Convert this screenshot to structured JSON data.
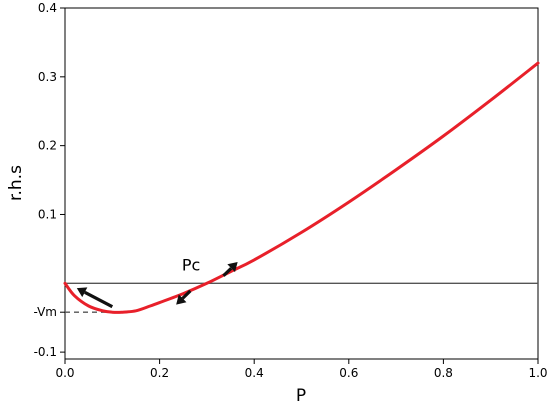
{
  "chart_data": {
    "type": "line",
    "xlabel": "P",
    "ylabel": "r.h.s",
    "xlim": [
      0.0,
      1.0
    ],
    "ylim": [
      -0.11,
      0.4
    ],
    "x_ticks": [
      {
        "value": 0.0,
        "label": "0.0"
      },
      {
        "value": 0.2,
        "label": "0.2"
      },
      {
        "value": 0.4,
        "label": "0.4"
      },
      {
        "value": 0.6,
        "label": "0.6"
      },
      {
        "value": 0.8,
        "label": "0.8"
      },
      {
        "value": 1.0,
        "label": "1.0"
      }
    ],
    "y_ticks": [
      {
        "value": 0.4,
        "label": "0.4"
      },
      {
        "value": 0.3,
        "label": "0.3"
      },
      {
        "value": 0.2,
        "label": "0.2"
      },
      {
        "value": 0.1,
        "label": "0.1"
      },
      {
        "value": -0.042,
        "label": "-Vm"
      },
      {
        "value": -0.1,
        "label": "-0.1"
      }
    ],
    "series": [
      {
        "color": "#e8202a",
        "x": [
          0.0,
          0.02,
          0.05,
          0.08,
          0.1,
          0.12,
          0.15,
          0.18,
          0.2,
          0.25,
          0.3,
          0.35,
          0.4,
          0.5,
          0.6,
          0.7,
          0.8,
          0.9,
          1.0
        ],
        "y": [
          0.0,
          -0.018,
          -0.033,
          -0.04,
          -0.042,
          -0.042,
          -0.04,
          -0.033,
          -0.028,
          -0.015,
          0.0,
          0.017,
          0.034,
          0.074,
          0.118,
          0.165,
          0.214,
          0.266,
          0.32
        ]
      }
    ],
    "reference_lines": {
      "zero_line_y": 0.0,
      "vm_line": {
        "y": -0.042,
        "x_end": 0.11,
        "style": "dashed"
      }
    },
    "annotations": [
      {
        "text": "Pc",
        "x": 0.3,
        "y": 0.0
      }
    ],
    "arrows": [
      {
        "from": [
          0.1,
          -0.034
        ],
        "to": [
          0.025,
          -0.007
        ]
      },
      {
        "from": [
          0.265,
          -0.011
        ],
        "to": [
          0.235,
          -0.031
        ]
      },
      {
        "from": [
          0.335,
          0.011
        ],
        "to": [
          0.365,
          0.031
        ]
      }
    ],
    "grid": false,
    "legend": "none"
  }
}
